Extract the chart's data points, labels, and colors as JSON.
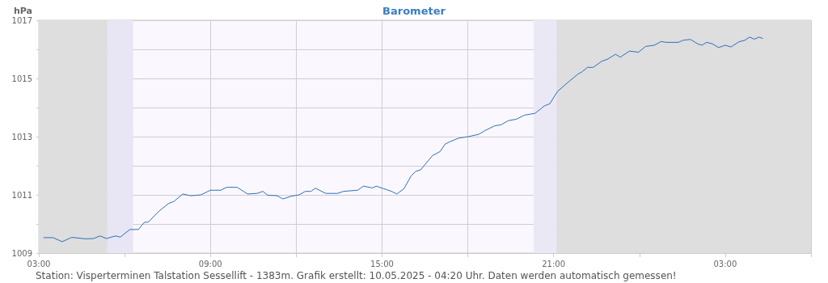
{
  "chart_data": {
    "type": "line",
    "title": "Barometer",
    "ylabel": "hPa",
    "annotations": [
      "Station: Visperterminen Talstation Sessellift - 1383m. Grafik erstellt: 10.05.2025 - 04:20 Uhr. Daten werden automatisch gemessen!"
    ],
    "series": [
      {
        "color": "#2f6fb5",
        "x": [
          "2025-05-09T03:10",
          "2025-05-09T03:30",
          "2025-05-09T03:49",
          "2025-05-09T04:09",
          "2025-05-09T04:38",
          "2025-05-09T04:55",
          "2025-05-09T05:08",
          "2025-05-09T05:22",
          "2025-05-09T05:41",
          "2025-05-09T05:51",
          "2025-05-09T06:11",
          "2025-05-09T06:29",
          "2025-05-09T06:41",
          "2025-05-09T06:50",
          "2025-05-09T07:12",
          "2025-05-09T07:32",
          "2025-05-09T07:44",
          "2025-05-09T08:02",
          "2025-05-09T08:19",
          "2025-05-09T08:40",
          "2025-05-09T09:00",
          "2025-05-09T09:22",
          "2025-05-09T09:34",
          "2025-05-09T09:56",
          "2025-05-09T10:18",
          "2025-05-09T10:38",
          "2025-05-09T10:50",
          "2025-05-09T11:00",
          "2025-05-09T11:20",
          "2025-05-09T11:32",
          "2025-05-09T11:51",
          "2025-05-09T12:06",
          "2025-05-09T12:19",
          "2025-05-09T12:31",
          "2025-05-09T12:40",
          "2025-05-09T13:02",
          "2025-05-09T13:27",
          "2025-05-09T13:39",
          "2025-05-09T14:09",
          "2025-05-09T14:21",
          "2025-05-09T14:40",
          "2025-05-09T14:48",
          "2025-05-09T15:04",
          "2025-05-09T15:20",
          "2025-05-09T15:31",
          "2025-05-09T15:46",
          "2025-05-09T16:01",
          "2025-05-09T16:11",
          "2025-05-09T16:21",
          "2025-05-09T16:46",
          "2025-05-09T17:02",
          "2025-05-09T17:12",
          "2025-05-09T17:23",
          "2025-05-09T17:41",
          "2025-05-09T18:01",
          "2025-05-09T18:23",
          "2025-05-09T18:35",
          "2025-05-09T18:56",
          "2025-05-09T19:10",
          "2025-05-09T19:25",
          "2025-05-09T19:42",
          "2025-05-09T19:59",
          "2025-05-09T20:21",
          "2025-05-09T20:41",
          "2025-05-09T20:52",
          "2025-05-09T21:08",
          "2025-05-09T21:34",
          "2025-05-09T21:51",
          "2025-05-09T21:59",
          "2025-05-09T22:11",
          "2025-05-09T22:23",
          "2025-05-09T22:41",
          "2025-05-09T22:53",
          "2025-05-09T23:10",
          "2025-05-09T23:20",
          "2025-05-09T23:39",
          "2025-05-09T23:58",
          "2025-05-10T00:13",
          "2025-05-10T00:31",
          "2025-05-10T00:46",
          "2025-05-10T00:56",
          "2025-05-10T01:22",
          "2025-05-10T01:31",
          "2025-05-10T01:47",
          "2025-05-10T02:02",
          "2025-05-10T02:11",
          "2025-05-10T02:21",
          "2025-05-10T02:33",
          "2025-05-10T02:46",
          "2025-05-10T03:00",
          "2025-05-10T03:12",
          "2025-05-10T03:29",
          "2025-05-10T03:41",
          "2025-05-10T03:51",
          "2025-05-10T04:01",
          "2025-05-10T04:11",
          "2025-05-10T04:19"
        ],
        "values": [
          1009.53,
          1009.53,
          1009.39,
          1009.54,
          1009.49,
          1009.5,
          1009.59,
          1009.5,
          1009.59,
          1009.55,
          1009.81,
          1009.81,
          1010.05,
          1010.07,
          1010.44,
          1010.7,
          1010.78,
          1011.03,
          1010.97,
          1011.0,
          1011.16,
          1011.16,
          1011.26,
          1011.26,
          1011.03,
          1011.05,
          1011.12,
          1010.99,
          1010.97,
          1010.86,
          1010.96,
          1011.0,
          1011.12,
          1011.12,
          1011.23,
          1011.05,
          1011.05,
          1011.12,
          1011.16,
          1011.3,
          1011.24,
          1011.3,
          1011.21,
          1011.12,
          1011.03,
          1011.21,
          1011.65,
          1011.81,
          1011.86,
          1012.35,
          1012.49,
          1012.74,
          1012.83,
          1012.95,
          1013.0,
          1013.08,
          1013.2,
          1013.37,
          1013.41,
          1013.55,
          1013.6,
          1013.74,
          1013.8,
          1014.06,
          1014.13,
          1014.55,
          1014.92,
          1015.15,
          1015.22,
          1015.38,
          1015.38,
          1015.59,
          1015.66,
          1015.83,
          1015.73,
          1015.94,
          1015.9,
          1016.1,
          1016.14,
          1016.27,
          1016.24,
          1016.24,
          1016.31,
          1016.34,
          1016.19,
          1016.14,
          1016.24,
          1016.19,
          1016.06,
          1016.14,
          1016.08,
          1016.26,
          1016.31,
          1016.42,
          1016.35,
          1016.42,
          1016.37
        ]
      }
    ],
    "xlim": [
      "2025-05-09T03:00",
      "2025-05-10T06:00"
    ],
    "xticks": [
      {
        "value": "2025-05-09T03:00",
        "label": "03:00"
      },
      {
        "value": "2025-05-09T06:00",
        "label": null
      },
      {
        "value": "2025-05-09T09:00",
        "label": "09:00"
      },
      {
        "value": "2025-05-09T12:00",
        "label": null
      },
      {
        "value": "2025-05-09T15:00",
        "label": "15:00"
      },
      {
        "value": "2025-05-09T18:00",
        "label": null
      },
      {
        "value": "2025-05-09T21:00",
        "label": "21:00"
      },
      {
        "value": "2025-05-10T00:00",
        "label": null
      },
      {
        "value": "2025-05-10T03:00",
        "label": "03:00"
      },
      {
        "value": "2025-05-10T06:00",
        "label": null
      }
    ],
    "ylim": [
      1009,
      1017
    ],
    "yticks": [
      1009,
      {
        "value": 1010,
        "label": null
      },
      1011,
      {
        "value": 1012,
        "label": null
      },
      1013,
      {
        "value": 1014,
        "label": null
      },
      1015,
      {
        "value": 1016,
        "label": null
      },
      1017
    ],
    "bands": [
      {
        "axis": "x",
        "from": "2025-05-09T03:00",
        "to": "2025-05-09T05:24",
        "color": "#dededf"
      },
      {
        "axis": "x",
        "from": "2025-05-09T05:24",
        "to": "2025-05-09T06:18",
        "color": "#e8e5f4"
      },
      {
        "axis": "x",
        "from": "2025-05-09T20:18",
        "to": "2025-05-09T21:06",
        "color": "#ebe8f6"
      },
      {
        "axis": "x",
        "from": "2025-05-09T21:06",
        "to": "2025-05-10T06:00",
        "color": "#dededf"
      }
    ],
    "grid": true,
    "marker": "none",
    "line_style": "solid"
  }
}
